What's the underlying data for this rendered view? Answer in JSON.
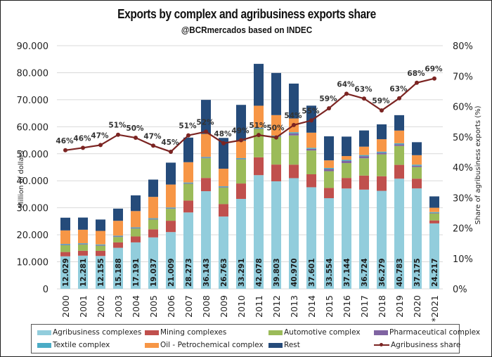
{
  "chart_data": {
    "type": "bar",
    "stacked": true,
    "title": "Exports by complex and agribusiness exports share",
    "subtitle": "@BCRmercados based on INDEC",
    "ylabel": "Million of dollars",
    "y2label": "Share of agribusiness exports (%)",
    "ylim": [
      0,
      90000
    ],
    "y2lim": [
      0,
      0.8
    ],
    "yticks": [
      "0",
      "10.000",
      "20.000",
      "30.000",
      "40.000",
      "50.000",
      "60.000",
      "70.000",
      "80.000",
      "90.000"
    ],
    "y2ticks": [
      "0%",
      "10%",
      "20%",
      "30%",
      "40%",
      "50%",
      "60%",
      "70%",
      "80%"
    ],
    "grid": true,
    "legend_position": "bottom",
    "categories": [
      "2000",
      "2001",
      "2002",
      "2003",
      "2004",
      "2005",
      "2006",
      "2007",
      "2008",
      "2009",
      "2010",
      "2011",
      "2012",
      "2013",
      "2014",
      "2015",
      "2016",
      "2017",
      "2018",
      "2019",
      "2020",
      "*2021"
    ],
    "series": [
      {
        "name": "Agribusiness complexes",
        "color": "#92cddc",
        "values": [
          12029,
          12281,
          12155,
          15188,
          17191,
          19037,
          21009,
          28273,
          36143,
          26763,
          33291,
          42078,
          39803,
          40970,
          37601,
          33554,
          37144,
          36724,
          36279,
          40783,
          37175,
          24217
        ],
        "labels": [
          "12.029",
          "12.281",
          "12.155",
          "15.188",
          "17.191",
          "19.037",
          "21.009",
          "28.273",
          "36.143",
          "26.763",
          "33.291",
          "42.078",
          "39.803",
          "40.970",
          "37.601",
          "33.554",
          "37.144",
          "36.724",
          "36.279",
          "40.783",
          "37.175",
          "24.217"
        ]
      },
      {
        "name": "Mining complexes",
        "color": "#c0504d",
        "values": [
          1600,
          1800,
          1900,
          2000,
          2200,
          3000,
          4200,
          4400,
          4900,
          4600,
          5700,
          6600,
          6200,
          5000,
          4800,
          3800,
          3900,
          5200,
          5400,
          5100,
          3600,
          1100
        ]
      },
      {
        "name": "Automotive complex",
        "color": "#9bbb59",
        "values": [
          2500,
          2300,
          1900,
          2000,
          2900,
          3600,
          4400,
          6200,
          7300,
          6100,
          8900,
          10500,
          10200,
          10800,
          8800,
          6200,
          5500,
          6400,
          8100,
          7000,
          4300,
          2600
        ]
      },
      {
        "name": "Pharmaceutical complex",
        "color": "#8064a2",
        "values": [
          200,
          200,
          200,
          200,
          200,
          200,
          200,
          200,
          200,
          200,
          200,
          200,
          200,
          800,
          600,
          800,
          800,
          800,
          600,
          600,
          500,
          200
        ]
      },
      {
        "name": "Textile complex",
        "color": "#4bacc6",
        "values": [
          300,
          300,
          300,
          300,
          300,
          300,
          300,
          300,
          300,
          300,
          300,
          300,
          300,
          400,
          400,
          400,
          400,
          400,
          400,
          400,
          400,
          300
        ]
      },
      {
        "name": "Oil - Petrochemical complex",
        "color": "#f79646",
        "values": [
          5000,
          5000,
          5000,
          5500,
          6000,
          7900,
          8500,
          7500,
          8500,
          6500,
          6400,
          8100,
          7600,
          5100,
          5600,
          2800,
          1400,
          3100,
          4600,
          4700,
          3500,
          1600
        ]
      },
      {
        "name": "Rest",
        "color": "#254b7a",
        "values": [
          4700,
          4500,
          4200,
          4500,
          5800,
          6400,
          8100,
          9100,
          12600,
          11400,
          13300,
          15500,
          15600,
          12900,
          10000,
          8900,
          7200,
          6000,
          5500,
          5700,
          4800,
          4200
        ]
      }
    ],
    "line_series": {
      "name": "Agribusiness share",
      "color": "#7b2422",
      "axis": "secondary",
      "values": [
        0.456,
        0.464,
        0.473,
        0.507,
        0.497,
        0.471,
        0.451,
        0.505,
        0.517,
        0.479,
        0.489,
        0.506,
        0.498,
        0.539,
        0.554,
        0.594,
        0.642,
        0.626,
        0.587,
        0.627,
        0.678,
        0.692
      ],
      "labels": [
        "46%",
        "46%",
        "47%",
        "51%",
        "50%",
        "47%",
        "45%",
        "51%",
        "52%",
        "48%",
        "49%",
        "51%",
        "50%",
        "54%",
        "55%",
        "59%",
        "64%",
        "63%",
        "59%",
        "63%",
        "68%",
        "69%"
      ]
    }
  },
  "legend": [
    {
      "name": "Agribusiness complexes",
      "color": "#92cddc",
      "kind": "bar"
    },
    {
      "name": "Mining complexes",
      "color": "#c0504d",
      "kind": "bar"
    },
    {
      "name": "Automotive complex",
      "color": "#9bbb59",
      "kind": "bar"
    },
    {
      "name": "Pharmaceutical complex",
      "color": "#8064a2",
      "kind": "bar"
    },
    {
      "name": "Textile complex",
      "color": "#4bacc6",
      "kind": "bar"
    },
    {
      "name": "Oil - Petrochemical complex",
      "color": "#f79646",
      "kind": "bar"
    },
    {
      "name": "Rest",
      "color": "#254b7a",
      "kind": "bar"
    },
    {
      "name": "Agribusiness share",
      "color": "#7b2422",
      "kind": "line"
    }
  ]
}
